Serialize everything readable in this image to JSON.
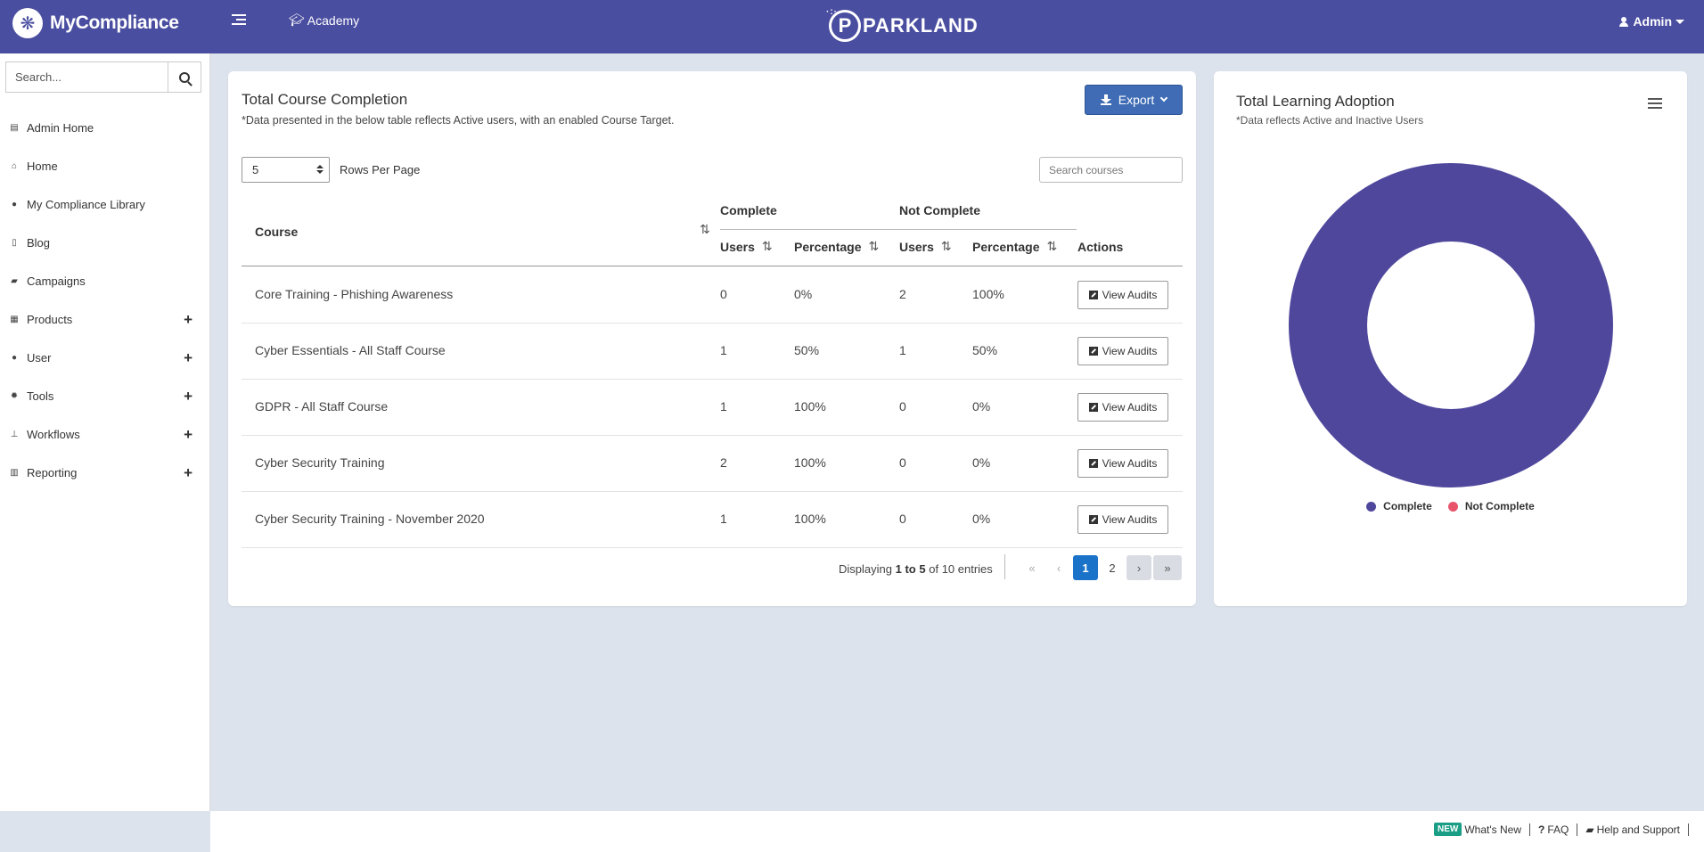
{
  "header": {
    "app_name": "MyCompliance",
    "brand_logo_glyph": "❋",
    "academy_label": "Academy",
    "partner_logo_text": "PARKLAND",
    "user_label": "Admin",
    "bg_color": "#4a4ea0"
  },
  "sidebar": {
    "search_placeholder": "Search...",
    "items": [
      {
        "label": "Admin Home",
        "icon": "list-alt-icon",
        "glyph": "▤",
        "expandable": false
      },
      {
        "label": "Home",
        "icon": "home-icon",
        "glyph": "⌂",
        "expandable": false
      },
      {
        "label": "My Compliance Library",
        "icon": "info-circle-icon",
        "glyph": "●",
        "expandable": false
      },
      {
        "label": "Blog",
        "icon": "file-icon",
        "glyph": "▯",
        "expandable": false
      },
      {
        "label": "Campaigns",
        "icon": "book-icon",
        "glyph": "▰",
        "expandable": false
      },
      {
        "label": "Products",
        "icon": "product-icon",
        "glyph": "▦",
        "expandable": true
      },
      {
        "label": "User",
        "icon": "user-icon",
        "glyph": "●",
        "expandable": true
      },
      {
        "label": "Tools",
        "icon": "gear-icon",
        "glyph": "✹",
        "expandable": true
      },
      {
        "label": "Workflows",
        "icon": "sitemap-icon",
        "glyph": "⊥",
        "expandable": true
      },
      {
        "label": "Reporting",
        "icon": "bar-chart-icon",
        "glyph": "▥",
        "expandable": true
      }
    ],
    "plus_glyph": "+"
  },
  "course_card": {
    "title": "Total Course Completion",
    "note": "*Data presented in the below table reflects Active users, with an enabled Course Target.",
    "export_label": "Export",
    "rows_per_page_value": "5",
    "rows_per_page_label": "Rows Per Page",
    "search_placeholder": "Search courses",
    "columns": {
      "course": "Course",
      "complete": "Complete",
      "not_complete": "Not Complete",
      "users": "Users",
      "percentage": "Percentage",
      "actions": "Actions"
    },
    "rows": [
      {
        "course": "Core Training - Phishing Awareness",
        "c_users": "0",
        "c_pct": "0%",
        "nc_users": "2",
        "nc_pct": "100%",
        "action": "View Audits"
      },
      {
        "course": "Cyber Essentials - All Staff Course",
        "c_users": "1",
        "c_pct": "50%",
        "nc_users": "1",
        "nc_pct": "50%",
        "action": "View Audits"
      },
      {
        "course": "GDPR - All Staff Course",
        "c_users": "1",
        "c_pct": "100%",
        "nc_users": "0",
        "nc_pct": "0%",
        "action": "View Audits"
      },
      {
        "course": "Cyber Security Training",
        "c_users": "2",
        "c_pct": "100%",
        "nc_users": "0",
        "nc_pct": "0%",
        "action": "View Audits"
      },
      {
        "course": "Cyber Security Training - November 2020",
        "c_users": "1",
        "c_pct": "100%",
        "nc_users": "0",
        "nc_pct": "0%",
        "action": "View Audits"
      }
    ],
    "pagination": {
      "prefix": "Displaying",
      "from": "1",
      "to_word": "to",
      "to": "5",
      "of_text": "of 10 entries",
      "first": "«",
      "prev": "‹",
      "pages": [
        "1",
        "2"
      ],
      "current": "1",
      "next": "›",
      "last": "»"
    }
  },
  "adoption_card": {
    "title": "Total Learning Adoption",
    "note": "*Data reflects Active and Inactive Users"
  },
  "chart_data": {
    "type": "pie",
    "variant": "donut",
    "title": "Total Learning Adoption",
    "categories": [
      "Complete",
      "Not Complete"
    ],
    "values": [
      100,
      0
    ],
    "colors": [
      "#4f479c",
      "#e8536b"
    ],
    "legend": "bottom"
  },
  "footer": {
    "new_badge": "NEW",
    "whats_new": "What's New",
    "faq": "FAQ",
    "help": "Help and Support"
  }
}
